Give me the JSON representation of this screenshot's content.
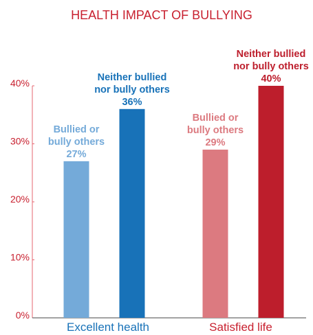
{
  "chart_data": {
    "type": "bar",
    "title": "HEALTH IMPACT OF BULLYING",
    "categories": [
      "Excellent health",
      "Satisfied life"
    ],
    "series": [
      {
        "name": "Bullied or bully others",
        "values": [
          27,
          29
        ]
      },
      {
        "name": "Neither bullied nor bully others",
        "values": [
          36,
          40
        ]
      }
    ],
    "bar_colors": [
      [
        "#74aad9",
        "#1872b8"
      ],
      [
        "#dc7a80",
        "#bd1e2c"
      ]
    ],
    "category_label_colors": [
      "#1872b8",
      "#c8202f"
    ],
    "y_ticks": [
      "0%",
      "10%",
      "20%",
      "30%",
      "40%"
    ],
    "tick_values": [
      0,
      10,
      20,
      30,
      40
    ],
    "ylim": [
      0,
      40
    ],
    "ylabel": "",
    "xlabel": "",
    "grid": false,
    "legend": "none",
    "bar_labels": [
      [
        {
          "lines": [
            "Bullied or",
            "bully others"
          ],
          "value": "27%"
        },
        {
          "lines": [
            "Neither bullied",
            "nor bully others"
          ],
          "value": "36%"
        }
      ],
      [
        {
          "lines": [
            "Bullied or",
            "bully others"
          ],
          "value": "29%"
        },
        {
          "lines": [
            "Neither bullied",
            "nor bully others"
          ],
          "value": "40%"
        }
      ]
    ]
  }
}
